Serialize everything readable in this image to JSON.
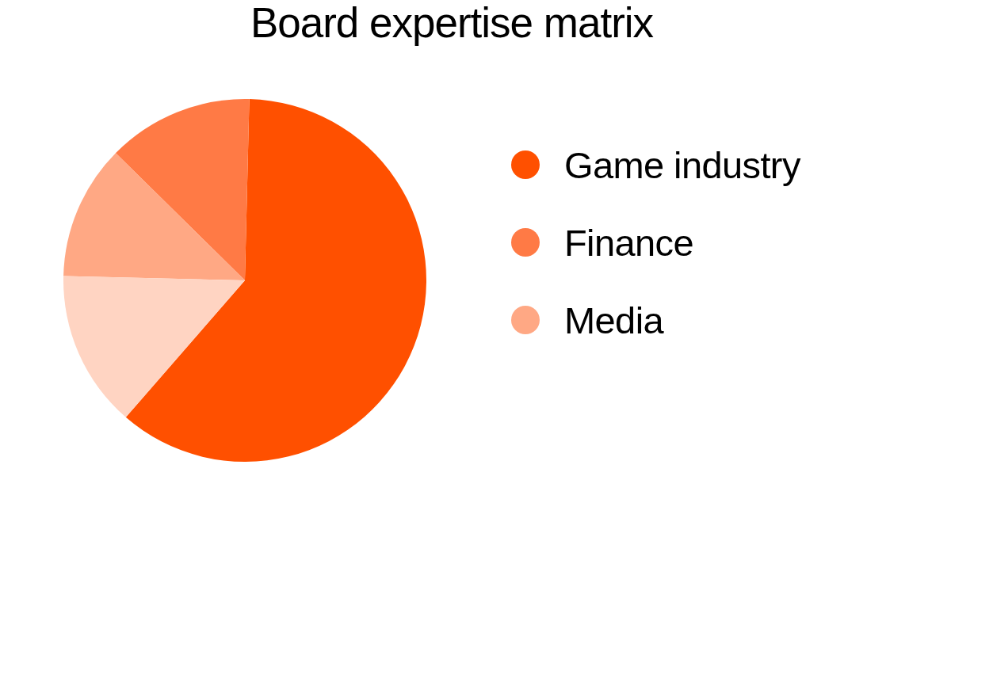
{
  "chart_data": {
    "type": "pie",
    "title": "Board expertise matrix",
    "categories": [
      "Game industry",
      "Finance",
      "Media",
      null
    ],
    "values": [
      61,
      13,
      12,
      14
    ],
    "colors": [
      "#ff5000",
      "#ff7a45",
      "#ffa884",
      "#ffd4c2"
    ],
    "legend": "right"
  }
}
